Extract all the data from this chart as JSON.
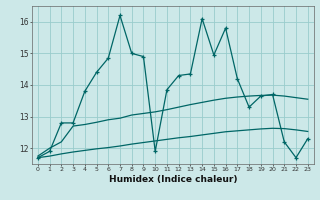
{
  "xlabel": "Humidex (Indice chaleur)",
  "background_color": "#cce8e8",
  "grid_color": "#99cccc",
  "line_color": "#006666",
  "x_values": [
    0,
    1,
    2,
    3,
    4,
    5,
    6,
    7,
    8,
    9,
    10,
    11,
    12,
    13,
    14,
    15,
    16,
    17,
    18,
    19,
    20,
    21,
    22,
    23
  ],
  "main_line": [
    11.7,
    11.9,
    12.8,
    12.8,
    13.8,
    14.4,
    14.85,
    16.2,
    15.0,
    14.9,
    11.9,
    13.85,
    14.3,
    14.35,
    16.1,
    14.95,
    15.8,
    14.2,
    13.3,
    13.65,
    13.7,
    12.2,
    11.7,
    12.3
  ],
  "trend_line1": [
    11.75,
    12.0,
    12.2,
    12.7,
    12.75,
    12.82,
    12.9,
    12.95,
    13.05,
    13.1,
    13.15,
    13.22,
    13.3,
    13.38,
    13.45,
    13.52,
    13.58,
    13.62,
    13.65,
    13.67,
    13.68,
    13.65,
    13.6,
    13.55
  ],
  "trend_line2": [
    11.7,
    11.75,
    11.82,
    11.88,
    11.93,
    11.98,
    12.02,
    12.07,
    12.13,
    12.18,
    12.23,
    12.28,
    12.33,
    12.37,
    12.42,
    12.47,
    12.52,
    12.55,
    12.58,
    12.61,
    12.63,
    12.62,
    12.58,
    12.53
  ],
  "ylim": [
    11.5,
    16.5
  ],
  "yticks": [
    12,
    13,
    14,
    15,
    16
  ],
  "xlim": [
    -0.5,
    23.5
  ],
  "xtick_labels": [
    "0",
    "1",
    "2",
    "3",
    "4",
    "5",
    "6",
    "7",
    "8",
    "9",
    "10",
    "11",
    "12",
    "13",
    "14",
    "15",
    "16",
    "17",
    "18",
    "19",
    "20",
    "21",
    "22",
    "23"
  ]
}
